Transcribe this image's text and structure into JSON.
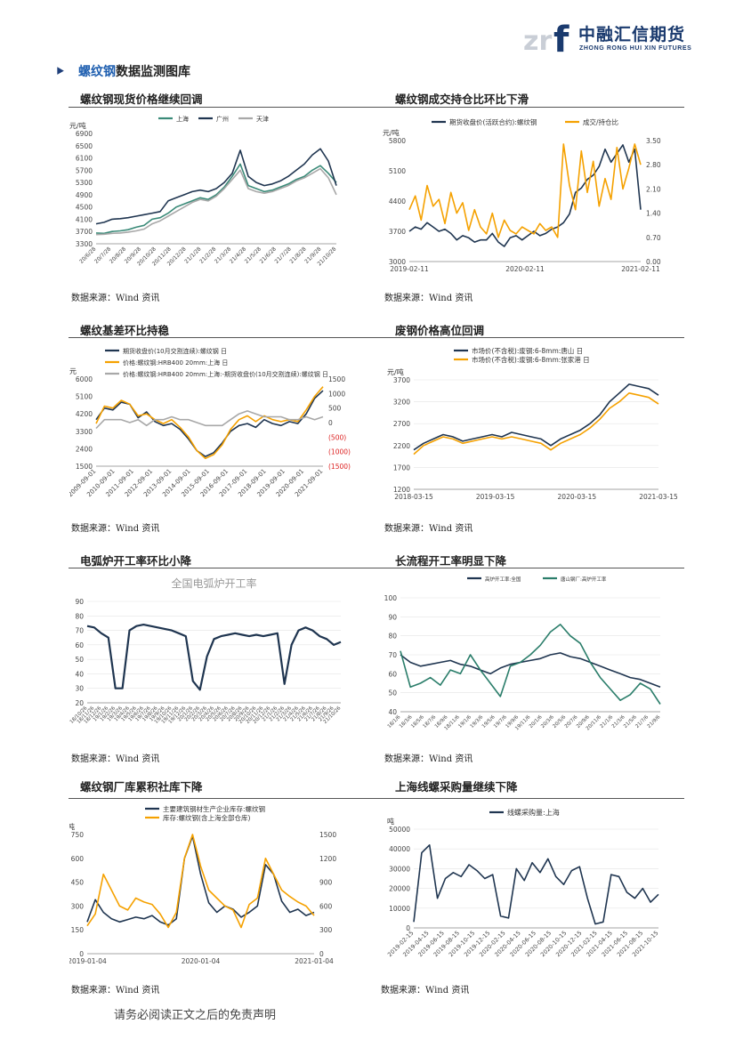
{
  "header": {
    "logo_cn": "中融汇信期货",
    "logo_en": "ZHONG RONG HUI XIN FUTURES",
    "logo_mark": "zrf"
  },
  "section": {
    "title_highlight": "螺纹钢",
    "title_rest": "数据监测图库"
  },
  "panels": [
    {
      "title": "螺纹钢现货价格继续回调",
      "source": "数据来源：Wind 资讯"
    },
    {
      "title": "螺纹钢成交持仓比环比下滑",
      "source": "数据来源：Wind 资讯"
    },
    {
      "title": "螺纹基差环比持稳",
      "source": "数据来源：Wind 资讯"
    },
    {
      "title": "废钢价格高位回调",
      "source": "数据来源：Wind 资讯"
    },
    {
      "title": "电弧炉开工率环比小降",
      "source": "数据来源：Wind 资讯"
    },
    {
      "title": "长流程开工率明显下降",
      "source": "数据来源：Wind 资讯"
    },
    {
      "title": "螺纹钢厂库累积社库下降",
      "source": "数据来源：Wind 资讯"
    },
    {
      "title": "上海线螺采购量继续下降",
      "source": "数据来源：Wind 资讯"
    }
  ],
  "footer": "请务必阅读正文之后的免责声明",
  "colors": {
    "navy": "#1f3550",
    "orange": "#f5a100",
    "green": "#3a8a78",
    "gray": "#a8a8a8",
    "teal": "#2a7d6a"
  },
  "chart_data": [
    {
      "type": "line",
      "ylabel": "元/吨",
      "ylim": [
        3300,
        6900
      ],
      "yticks": [
        "6900",
        "6500",
        "6100",
        "5700",
        "5300",
        "4900",
        "4500",
        "4100",
        "3700",
        "3300"
      ],
      "xticks": [
        "20/6/28",
        "20/7/28",
        "20/8/28",
        "20/9/28",
        "20/10/28",
        "20/11/28",
        "20/12/28",
        "21/1/28",
        "21/2/28",
        "21/3/28",
        "21/4/28",
        "21/5/28",
        "21/6/28",
        "21/7/28",
        "21/8/28",
        "21/9/28",
        "21/10/28"
      ],
      "legend": [
        "上海",
        "广州",
        "天津"
      ],
      "series": [
        {
          "name": "上海",
          "values": [
            3650,
            3640,
            3700,
            3720,
            3760,
            3840,
            3900,
            4100,
            4150,
            4300,
            4500,
            4600,
            4700,
            4800,
            4750,
            4900,
            5150,
            5500,
            5900,
            5200,
            5100,
            5000,
            5050,
            5150,
            5250,
            5400,
            5500,
            5700,
            5850,
            5600,
            5300
          ]
        },
        {
          "name": "广州",
          "values": [
            3950,
            4000,
            4100,
            4120,
            4150,
            4200,
            4250,
            4300,
            4350,
            4700,
            4800,
            4900,
            5000,
            5050,
            5000,
            5100,
            5300,
            5600,
            6350,
            5500,
            5300,
            5200,
            5250,
            5350,
            5500,
            5700,
            5900,
            6200,
            6400,
            6000,
            5200
          ]
        },
        {
          "name": "天津",
          "values": [
            3600,
            3610,
            3640,
            3650,
            3680,
            3720,
            3780,
            3950,
            4050,
            4200,
            4350,
            4500,
            4650,
            4750,
            4700,
            4850,
            5100,
            5400,
            5700,
            5100,
            5000,
            4950,
            5000,
            5100,
            5200,
            5350,
            5450,
            5600,
            5750,
            5450,
            4900
          ]
        }
      ]
    },
    {
      "type": "line",
      "ylabel": "元/吨",
      "ylim": [
        3000,
        5800
      ],
      "yticks": [
        "5800",
        "5100",
        "4400",
        "3700",
        "3000"
      ],
      "y2ticks": [
        "3.50",
        "2.80",
        "2.10",
        "1.40",
        "0.70",
        "0.00"
      ],
      "xticks": [
        "2019-02-11",
        "2020-02-11",
        "2021-02-11"
      ],
      "legend": [
        "期货收盘价(活跃合约):螺纹钢",
        "成交/持仓比"
      ],
      "series": [
        {
          "name": "期货收盘价(活跃合约):螺纹钢",
          "axis": "left",
          "values": [
            3700,
            3800,
            3750,
            3900,
            3800,
            3700,
            3750,
            3650,
            3500,
            3600,
            3550,
            3450,
            3500,
            3500,
            3650,
            3450,
            3350,
            3550,
            3600,
            3500,
            3600,
            3700,
            3600,
            3650,
            3750,
            3800,
            3900,
            4100,
            4600,
            4700,
            4900,
            5000,
            5200,
            5600,
            5300,
            5500,
            5700,
            5300,
            5600,
            4200
          ]
        },
        {
          "name": "成交/持仓比",
          "axis": "right",
          "values": [
            1.5,
            1.9,
            1.2,
            2.2,
            1.6,
            1.8,
            1.1,
            2.0,
            1.4,
            1.7,
            0.9,
            1.5,
            1.0,
            0.8,
            1.4,
            0.7,
            1.2,
            0.9,
            0.8,
            1.0,
            0.9,
            0.8,
            1.1,
            0.9,
            1.0,
            0.7,
            3.4,
            2.2,
            1.5,
            3.2,
            2.0,
            2.9,
            1.6,
            2.4,
            1.8,
            3.3,
            2.1,
            2.7,
            3.4,
            2.8
          ]
        }
      ]
    },
    {
      "type": "line",
      "ylabel": "元",
      "ylim": [
        1500,
        6000
      ],
      "yticks": [
        "6000",
        "5100",
        "4200",
        "3300",
        "2400",
        "1500"
      ],
      "y2ticks": [
        "1500",
        "1000",
        "500",
        "0",
        "(500)",
        "(1000)",
        "(1500)"
      ],
      "xticks": [
        "2009-09-01",
        "2010-09-01",
        "2011-09-01",
        "2012-09-01",
        "2013-09-01",
        "2014-09-01",
        "2015-09-01",
        "2016-09-01",
        "2017-09-01",
        "2018-09-01",
        "2019-09-01",
        "2020-09-01",
        "2021-09-01"
      ],
      "legend": [
        "期货收盘价(10月交割连续):螺纹钢 日",
        "价格:螺纹钢:HRB400 20mm:上海 日",
        "价格:螺纹钢:HRB400 20mm:上海:-期货收盘价(10月交割连续):螺纹钢 日"
      ],
      "series": [
        {
          "name": "期货收盘价(10月交割连续):螺纹钢 日",
          "axis": "left",
          "values": [
            3900,
            4500,
            4400,
            4800,
            4700,
            4000,
            4300,
            3800,
            3600,
            3700,
            3400,
            2900,
            2300,
            2000,
            2200,
            2700,
            3300,
            3600,
            3700,
            3500,
            3900,
            3700,
            3600,
            3800,
            3700,
            4200,
            5000,
            5400
          ]
        },
        {
          "name": "价格:螺纹钢:HRB400 20mm:上海 日",
          "axis": "left",
          "values": [
            3700,
            4600,
            4500,
            4900,
            4700,
            4100,
            4200,
            3900,
            3700,
            3900,
            3500,
            3000,
            2300,
            1900,
            2100,
            2600,
            3400,
            3900,
            4100,
            3800,
            4100,
            3900,
            3800,
            3900,
            3800,
            4400,
            5100,
            5600
          ]
        },
        {
          "name": "价格:螺纹钢:HRB400 20mm:上海:-期货收盘价(10月交割连续):螺纹钢 日",
          "axis": "right",
          "values": [
            -200,
            100,
            100,
            100,
            0,
            100,
            -100,
            100,
            100,
            200,
            100,
            100,
            0,
            -100,
            -100,
            -100,
            100,
            300,
            400,
            300,
            200,
            200,
            200,
            100,
            100,
            200,
            100,
            200
          ]
        }
      ]
    },
    {
      "type": "line",
      "ylabel": "元/吨",
      "ylim": [
        1200,
        3700
      ],
      "yticks": [
        "3700",
        "3200",
        "2700",
        "2200",
        "1700",
        "1200"
      ],
      "xticks": [
        "2018-03-15",
        "2019-03-15",
        "2020-03-15",
        "2021-03-15"
      ],
      "legend": [
        "市场价(不含税):废钢:6-8mm:唐山 日",
        "市场价(不含税):废钢:6-8mm:张家港 日"
      ],
      "series": [
        {
          "name": "市场价(不含税):废钢:6-8mm:唐山 日",
          "values": [
            2100,
            2250,
            2350,
            2450,
            2400,
            2300,
            2350,
            2400,
            2450,
            2400,
            2500,
            2450,
            2400,
            2350,
            2200,
            2350,
            2450,
            2550,
            2700,
            2900,
            3200,
            3400,
            3600,
            3550,
            3500,
            3350
          ]
        },
        {
          "name": "市场价(不含税):废钢:6-8mm:张家港 日",
          "values": [
            2000,
            2200,
            2300,
            2400,
            2350,
            2250,
            2300,
            2350,
            2400,
            2350,
            2400,
            2350,
            2300,
            2250,
            2100,
            2250,
            2350,
            2450,
            2600,
            2800,
            3050,
            3200,
            3400,
            3350,
            3300,
            3150
          ]
        }
      ]
    },
    {
      "type": "line",
      "title": "全国电弧炉开工率",
      "ylabel": "%",
      "ylim": [
        20,
        90
      ],
      "yticks": [
        "90",
        "80",
        "70",
        "60",
        "50",
        "40",
        "30",
        "20"
      ],
      "xticks": [
        "18/10/26",
        "18/11/26",
        "18/12/26",
        "19/1/26",
        "19/2/26",
        "19/3/26",
        "19/4/26",
        "19/5/26",
        "19/6/26",
        "19/7/26",
        "19/8/26",
        "19/9/26",
        "19/10/26",
        "19/11/26",
        "19/12/26",
        "20/1/26",
        "20/2/26",
        "20/3/26",
        "20/4/26",
        "20/5/26",
        "20/6/26",
        "20/7/26",
        "20/8/26",
        "20/9/26",
        "20/10/26",
        "20/11/26",
        "20/12/26",
        "21/1/26",
        "21/2/26",
        "21/3/26",
        "21/4/26",
        "21/5/26",
        "21/6/26",
        "21/7/26",
        "21/8/26",
        "21/9/26",
        "21/10/26"
      ],
      "values": [
        73,
        72,
        68,
        65,
        30,
        30,
        70,
        73,
        74,
        73,
        72,
        71,
        70,
        68,
        66,
        35,
        29,
        52,
        64,
        66,
        67,
        68,
        67,
        66,
        67,
        66,
        67,
        68,
        33,
        60,
        70,
        72,
        70,
        66,
        64,
        60,
        62
      ]
    },
    {
      "type": "line",
      "ylabel": "%",
      "ylim": [
        40,
        100
      ],
      "yticks": [
        "100",
        "90",
        "80",
        "70",
        "60",
        "50",
        "40"
      ],
      "legend": [
        "高炉开工率:全国",
        "唐山钢厂:高炉开工率"
      ],
      "xticks": [
        "18/1/6",
        "18/3/6",
        "18/5/6",
        "18/7/6",
        "18/9/6",
        "18/11/6",
        "19/1/6",
        "19/3/6",
        "19/5/6",
        "19/7/6",
        "19/9/6",
        "19/11/6",
        "20/1/6",
        "20/3/6",
        "20/5/6",
        "20/7/6",
        "20/9/6",
        "20/11/6",
        "21/1/6",
        "21/3/6",
        "21/5/6",
        "21/7/6",
        "21/9/6"
      ],
      "series": [
        {
          "name": "高炉开工率:全国",
          "values": [
            70,
            66,
            64,
            65,
            66,
            67,
            65,
            64,
            62,
            60,
            63,
            65,
            66,
            67,
            68,
            70,
            71,
            69,
            68,
            66,
            64,
            62,
            60,
            58,
            57,
            55,
            53
          ]
        },
        {
          "name": "唐山钢厂:高炉开工率",
          "values": [
            72,
            53,
            55,
            58,
            54,
            62,
            60,
            70,
            62,
            55,
            48,
            64,
            66,
            70,
            75,
            82,
            86,
            80,
            76,
            66,
            58,
            52,
            46,
            49,
            55,
            52,
            44
          ]
        }
      ]
    },
    {
      "type": "line",
      "ylabel": "万吨",
      "ylim": [
        0,
        750
      ],
      "yticks": [
        "750",
        "600",
        "450",
        "300",
        "150",
        "0"
      ],
      "y2ticks": [
        "1500",
        "1200",
        "900",
        "600",
        "300",
        "0"
      ],
      "xticks": [
        "2019-01-04",
        "2020-01-04",
        "2021-01-04"
      ],
      "legend": [
        "主要建筑钢材生产企业库存:螺纹钢",
        "库存:螺纹钢(含上海全部仓库)"
      ],
      "series": [
        {
          "name": "主要建筑钢材生产企业库存:螺纹钢",
          "axis": "left",
          "values": [
            200,
            340,
            260,
            220,
            200,
            215,
            230,
            220,
            240,
            200,
            180,
            220,
            600,
            740,
            500,
            320,
            260,
            300,
            280,
            230,
            260,
            300,
            560,
            500,
            330,
            260,
            280,
            240,
            260
          ]
        },
        {
          "name": "库存:螺纹钢(含上海全部仓库)",
          "axis": "right",
          "values": [
            350,
            500,
            1000,
            800,
            600,
            550,
            700,
            650,
            620,
            500,
            330,
            520,
            1200,
            1500,
            1100,
            800,
            700,
            600,
            550,
            330,
            620,
            700,
            1200,
            1000,
            800,
            720,
            650,
            600,
            480
          ]
        }
      ]
    },
    {
      "type": "line",
      "ylabel": "吨",
      "ylim": [
        0,
        50000
      ],
      "yticks": [
        "50000",
        "40000",
        "30000",
        "20000",
        "10000",
        "0"
      ],
      "xticks": [
        "2019-02-15",
        "2019-04-15",
        "2019-06-15",
        "2019-08-15",
        "2019-10-15",
        "2019-12-15",
        "2020-02-15",
        "2020-04-15",
        "2020-06-15",
        "2020-08-15",
        "2020-10-15",
        "2020-12-15",
        "2021-02-15",
        "2021-04-15",
        "2021-06-15",
        "2021-08-15",
        "2021-10-15"
      ],
      "legend": [
        "线螺采购量:上海"
      ],
      "values": [
        3000,
        38000,
        42000,
        15000,
        25000,
        28000,
        26000,
        32000,
        29000,
        25000,
        27000,
        6000,
        5000,
        30000,
        24000,
        33000,
        28000,
        35000,
        26000,
        22000,
        29000,
        31000,
        15000,
        2000,
        3000,
        27000,
        26000,
        18000,
        15000,
        20000,
        13000,
        17000
      ]
    }
  ]
}
